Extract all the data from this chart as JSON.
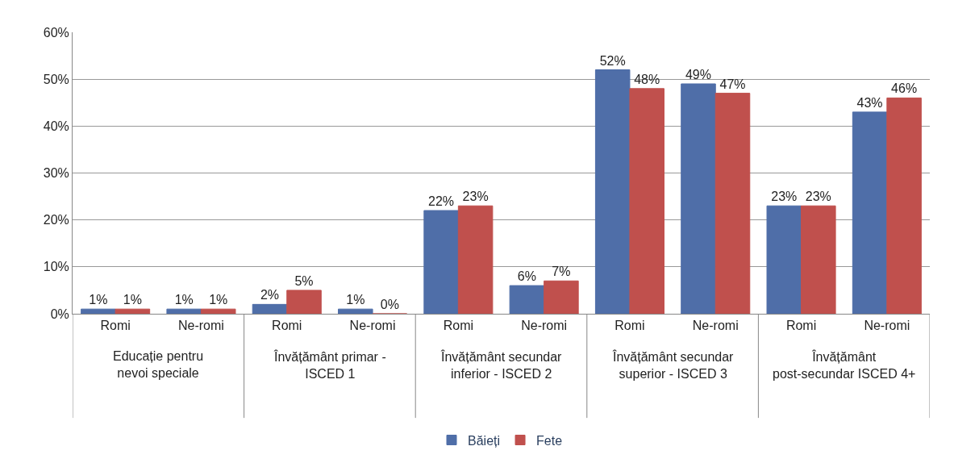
{
  "chart_data": {
    "type": "bar",
    "categories": [
      "Romi",
      "Ne-romi",
      "Romi",
      "Ne-romi",
      "Romi",
      "Ne-romi",
      "Romi",
      "Ne-romi",
      "Romi",
      "Ne-romi"
    ],
    "series": [
      {
        "name": "Băieți",
        "color": "#4f6ea8",
        "values": [
          1,
          1,
          2,
          1,
          22,
          6,
          52,
          49,
          23,
          43
        ],
        "value_labels": [
          "1%",
          "1%",
          "2%",
          "1%",
          "22%",
          "6%",
          "52%",
          "49%",
          "23%",
          "43%"
        ]
      },
      {
        "name": "Fete",
        "color": "#c0504d",
        "values": [
          1,
          1,
          5,
          0,
          23,
          7,
          48,
          47,
          23,
          46
        ],
        "value_labels": [
          "1%",
          "1%",
          "5%",
          "0%",
          "23%",
          "7%",
          "48%",
          "47%",
          "23%",
          "46%"
        ]
      }
    ],
    "ylim": [
      0,
      60
    ],
    "yticks": [
      {
        "value": 0,
        "label": "0%"
      },
      {
        "value": 10,
        "label": "10%"
      },
      {
        "value": 20,
        "label": "20%"
      },
      {
        "value": 30,
        "label": "30%"
      },
      {
        "value": 40,
        "label": "40%"
      },
      {
        "value": 50,
        "label": "50%"
      },
      {
        "value": 60,
        "label": "60%"
      }
    ],
    "grid": "y",
    "legend": "bottom",
    "annotations": [
      "Educație pentru\nnevoi speciale",
      "Învățământ primar -\nISCED 1",
      "Învățământ secundar\ninferior - ISCED 2",
      "Învățământ secundar\nsuperior - ISCED 3",
      "Învățământ\npost-secundar ISCED 4+"
    ]
  }
}
